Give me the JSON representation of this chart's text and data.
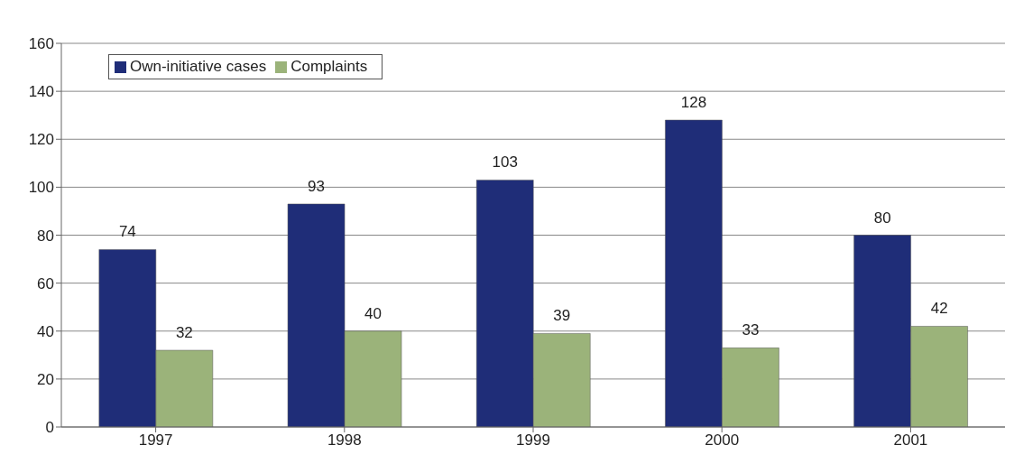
{
  "chart_data": {
    "type": "bar",
    "categories": [
      "1997",
      "1998",
      "1999",
      "2000",
      "2001"
    ],
    "series": [
      {
        "name": "Own-initiative cases",
        "color": "#1f2d78",
        "values": [
          74,
          93,
          103,
          128,
          80
        ]
      },
      {
        "name": "Complaints",
        "color": "#9bb37a",
        "values": [
          32,
          40,
          39,
          33,
          42
        ]
      }
    ],
    "ylim": [
      0,
      160
    ],
    "yticks": [
      0,
      20,
      40,
      60,
      80,
      100,
      120,
      140,
      160
    ],
    "grid": "y",
    "legend": "top left",
    "data_labels": true
  }
}
